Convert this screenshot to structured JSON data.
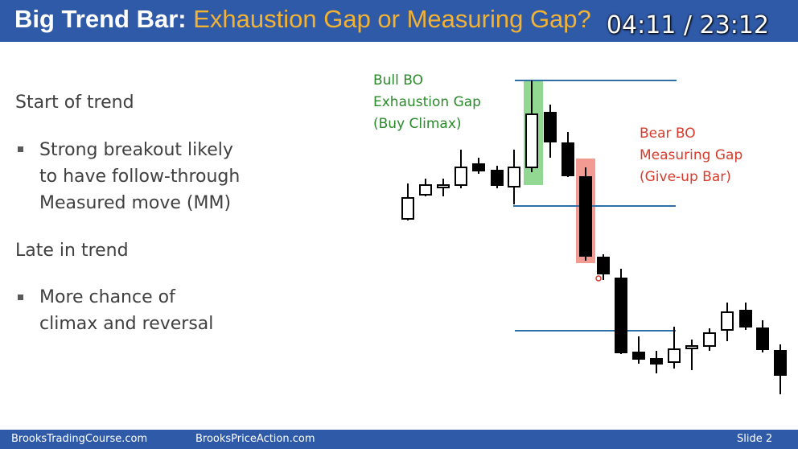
{
  "slide": {
    "title_lead": "Big Trend Bar:",
    "title_rest": "Exhaustion Gap or Measuring Gap?",
    "timer": "04:11 / 23:12",
    "heading1": "Start of trend",
    "bullets1": [
      "Strong breakout likely",
      "to have follow-through",
      "Measured move (MM)"
    ],
    "heading2": "Late in trend",
    "bullets2": [
      "More chance of",
      "climax and reversal"
    ]
  },
  "annotations": {
    "bull": [
      "Bull BO",
      "Exhaustion Gap",
      "(Buy Climax)"
    ],
    "bear": [
      "Bear BO",
      "Measuring Gap",
      "(Give-up Bar)"
    ]
  },
  "footer": {
    "left": "BrooksTradingCourse.com",
    "middle": "BrooksPriceAction.com",
    "right": "Slide  2"
  },
  "colors": {
    "title_bar": "#2f5aa8",
    "title_accent": "#f2b233",
    "bull_highlight": "#7fd17f",
    "bear_highlight": "#f08a80",
    "level_line": "#2e6fa8"
  }
}
